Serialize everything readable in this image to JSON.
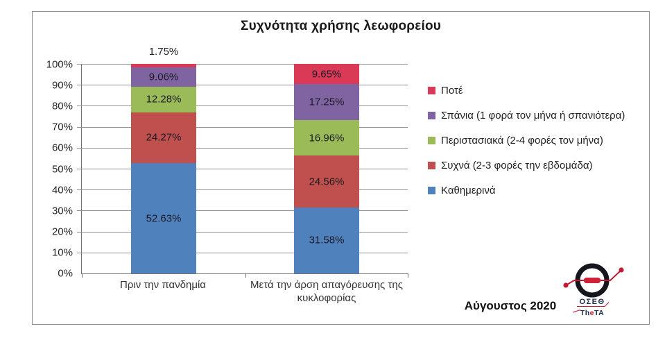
{
  "title": "Συχνότητα χρήσης λεωφορείου",
  "footer": {
    "date_label": "Αύγουστος 2020"
  },
  "logo": {
    "org": "ΟΣΕΘ",
    "brand_pre": "Th",
    "brand_mid": "e",
    "brand_post": "TA",
    "ring_color": "#16161e",
    "accent_color": "#c11a32",
    "text_color": "#1c2b4a"
  },
  "chart_data": {
    "type": "bar",
    "stacked": true,
    "grid": "horizontal",
    "legend_position": "right",
    "title": "Συχνότητα χρήσης λεωφορείου",
    "categories": [
      "Πριν την πανδημία",
      "Μετά την άρση απαγόρευσης της κυκλοφορίας"
    ],
    "series": [
      {
        "name": "Καθημερινά",
        "color": "#4F81BD",
        "values": [
          52.63,
          31.58
        ],
        "labels": [
          "52.63%",
          "31.58%"
        ]
      },
      {
        "name": "Συχνά (2-3 φορές την εβδομάδα)",
        "color": "#C0504D",
        "values": [
          24.27,
          24.56
        ],
        "labels": [
          "24.27%",
          "24.56%"
        ]
      },
      {
        "name": "Περιστασιακά (2-4 φορές τον μήνα)",
        "color": "#9BBB59",
        "values": [
          12.28,
          16.96
        ],
        "labels": [
          "12.28%",
          "16.96%"
        ]
      },
      {
        "name": "Σπάνια (1 φορά τον μήνα ή σπανιότερα)",
        "color": "#8064A2",
        "values": [
          9.06,
          17.25
        ],
        "labels": [
          "9.06%",
          "17.25%"
        ]
      },
      {
        "name": "Ποτέ",
        "color": "#DA3A55",
        "values": [
          1.75,
          9.65
        ],
        "labels": [
          "1.75%",
          "9.65%"
        ]
      }
    ],
    "y_ticks": [
      "0%",
      "10%",
      "20%",
      "30%",
      "40%",
      "50%",
      "60%",
      "70%",
      "80%",
      "90%",
      "100%"
    ],
    "ylim": [
      0,
      100
    ],
    "small_segment_label_threshold": 4
  }
}
